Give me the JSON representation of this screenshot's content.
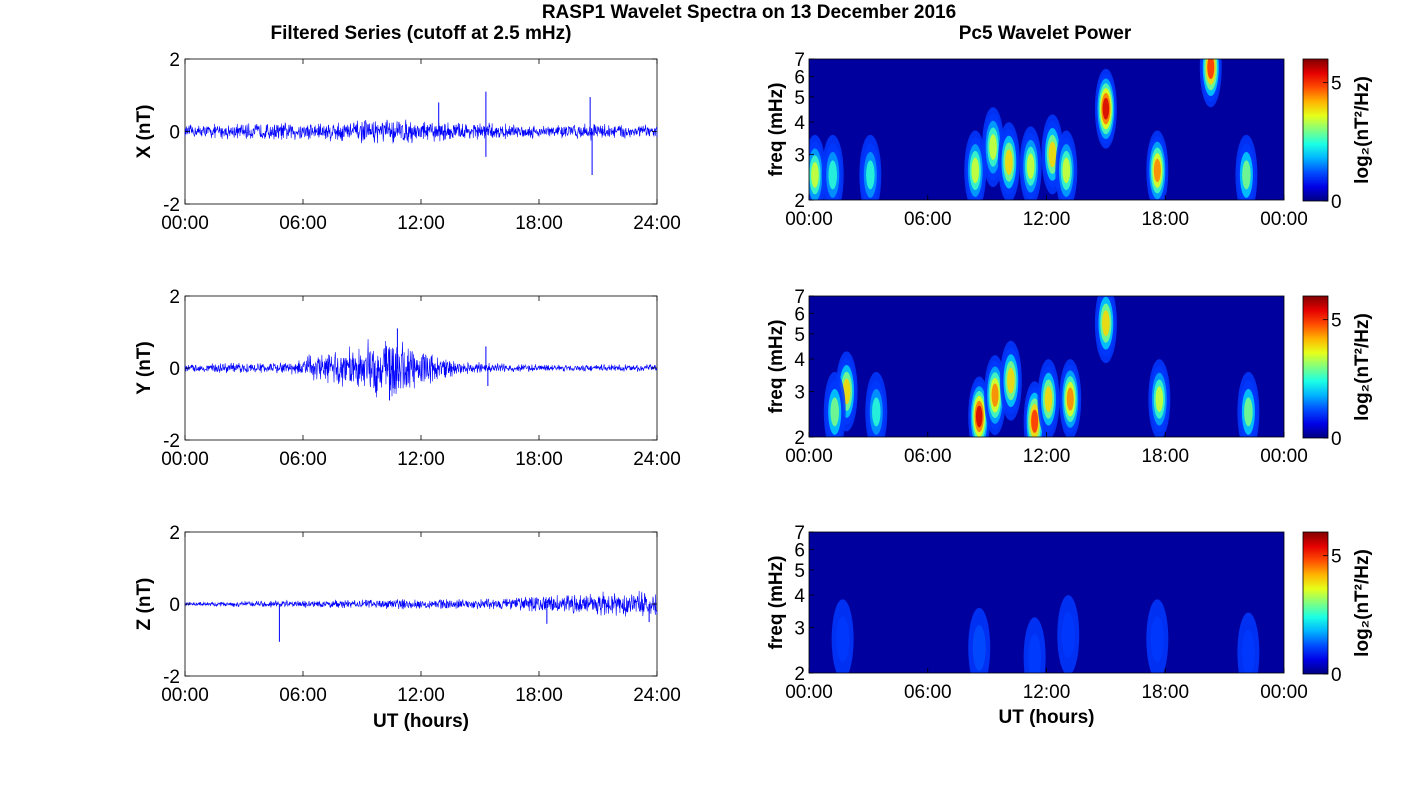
{
  "figure": {
    "title": "RASP1 Wavelet Spectra on 13 December 2016",
    "left_column_title": "Filtered Series (cutoff at 2.5 mHz)",
    "right_column_title": "Pc5 Wavelet Power"
  },
  "chart_data": [
    {
      "type": "line",
      "component": "X",
      "ylabel": "X (nT)",
      "xlabel": "",
      "xticks": [
        "00:00",
        "06:00",
        "12:00",
        "18:00",
        "24:00"
      ],
      "xlim": [
        0,
        24
      ],
      "ylim": [
        -2,
        2
      ],
      "yticks": [
        "2",
        "0",
        "-2"
      ],
      "x_units": "hours UT",
      "amplitude_envelope": {
        "x": [
          0,
          2,
          4,
          6,
          8,
          10,
          11,
          12,
          14,
          15.5,
          16,
          18,
          20,
          20.5,
          22,
          24
        ],
        "y": [
          0.15,
          0.18,
          0.2,
          0.22,
          0.25,
          0.28,
          0.3,
          0.25,
          0.22,
          0.2,
          0.18,
          0.15,
          0.18,
          0.2,
          0.18,
          0.15
        ]
      },
      "spikes": [
        {
          "x": 15.3,
          "y": 1.1
        },
        {
          "x": 15.3,
          "y": -0.7
        },
        {
          "x": 20.6,
          "y": 0.95
        },
        {
          "x": 20.7,
          "y": -1.2
        },
        {
          "x": 12.9,
          "y": 0.8
        }
      ]
    },
    {
      "type": "heatmap",
      "component": "X",
      "ylabel": "freq (mHz)",
      "xticks": [
        "00:00",
        "06:00",
        "12:00",
        "18:00",
        "00:00"
      ],
      "yticks": [
        "2",
        "3",
        "4",
        "5",
        "6",
        "7"
      ],
      "xlim": [
        0,
        24
      ],
      "ylim": [
        2,
        7
      ],
      "colorbar": {
        "label": "log₂(nT²/Hz)",
        "ticks": [
          "0",
          "5"
        ],
        "range": [
          0,
          6
        ]
      },
      "blobs": [
        {
          "t": 0.3,
          "f": 2.5,
          "power": 3.5
        },
        {
          "t": 1.2,
          "f": 2.5,
          "power": 2.5
        },
        {
          "t": 3.1,
          "f": 2.5,
          "power": 2.5
        },
        {
          "t": 8.4,
          "f": 2.6,
          "power": 3.5
        },
        {
          "t": 9.3,
          "f": 3.2,
          "power": 3.5
        },
        {
          "t": 10.1,
          "f": 2.8,
          "power": 4
        },
        {
          "t": 11.2,
          "f": 2.7,
          "power": 3.5
        },
        {
          "t": 12.3,
          "f": 3.0,
          "power": 4
        },
        {
          "t": 13.0,
          "f": 2.6,
          "power": 3.5
        },
        {
          "t": 15.0,
          "f": 4.5,
          "power": 5.5
        },
        {
          "t": 17.6,
          "f": 2.6,
          "power": 4.5
        },
        {
          "t": 20.3,
          "f": 6.5,
          "power": 5
        },
        {
          "t": 22.1,
          "f": 2.5,
          "power": 3
        }
      ]
    },
    {
      "type": "line",
      "component": "Y",
      "ylabel": "Y (nT)",
      "xlabel": "",
      "xticks": [
        "00:00",
        "06:00",
        "12:00",
        "18:00",
        "24:00"
      ],
      "xlim": [
        0,
        24
      ],
      "ylim": [
        -2,
        2
      ],
      "yticks": [
        "2",
        "0",
        "-2"
      ],
      "x_units": "hours UT",
      "amplitude_envelope": {
        "x": [
          0,
          2,
          4,
          5.5,
          6.5,
          8,
          9,
          10,
          10.5,
          11.5,
          12,
          13,
          14,
          15.5,
          18,
          20,
          22,
          24
        ],
        "y": [
          0.08,
          0.12,
          0.12,
          0.15,
          0.35,
          0.45,
          0.6,
          0.75,
          0.85,
          0.55,
          0.4,
          0.3,
          0.15,
          0.12,
          0.08,
          0.08,
          0.08,
          0.08
        ]
      },
      "spikes": [
        {
          "x": 10.8,
          "y": 1.1
        },
        {
          "x": 10.4,
          "y": -0.9
        },
        {
          "x": 15.3,
          "y": 0.6
        },
        {
          "x": 15.4,
          "y": -0.5
        }
      ]
    },
    {
      "type": "heatmap",
      "component": "Y",
      "ylabel": "freq (mHz)",
      "xticks": [
        "00:00",
        "06:00",
        "12:00",
        "18:00",
        "00:00"
      ],
      "yticks": [
        "2",
        "3",
        "4",
        "5",
        "6",
        "7"
      ],
      "xlim": [
        0,
        24
      ],
      "ylim": [
        2,
        7
      ],
      "colorbar": {
        "label": "log₂(nT²/Hz)",
        "ticks": [
          "0",
          "5"
        ],
        "range": [
          0,
          6
        ]
      },
      "blobs": [
        {
          "t": 1.9,
          "f": 3.0,
          "power": 4
        },
        {
          "t": 1.3,
          "f": 2.5,
          "power": 3
        },
        {
          "t": 3.4,
          "f": 2.5,
          "power": 2.5
        },
        {
          "t": 8.6,
          "f": 2.4,
          "power": 5.5
        },
        {
          "t": 9.4,
          "f": 2.9,
          "power": 4.5
        },
        {
          "t": 10.2,
          "f": 3.3,
          "power": 4
        },
        {
          "t": 11.4,
          "f": 2.3,
          "power": 5
        },
        {
          "t": 12.1,
          "f": 2.8,
          "power": 4
        },
        {
          "t": 13.2,
          "f": 2.8,
          "power": 4.5
        },
        {
          "t": 15.0,
          "f": 5.5,
          "power": 4
        },
        {
          "t": 17.7,
          "f": 2.8,
          "power": 3.5
        },
        {
          "t": 22.2,
          "f": 2.5,
          "power": 3
        }
      ]
    },
    {
      "type": "line",
      "component": "Z",
      "ylabel": "Z (nT)",
      "xlabel": "UT (hours)",
      "xticks": [
        "00:00",
        "06:00",
        "12:00",
        "18:00",
        "24:00"
      ],
      "xlim": [
        0,
        24
      ],
      "ylim": [
        -2,
        2
      ],
      "yticks": [
        "2",
        "0",
        "-2"
      ],
      "x_units": "hours UT",
      "amplitude_envelope": {
        "x": [
          0,
          2,
          4,
          6,
          8,
          10,
          12,
          14,
          16,
          17.5,
          19,
          20,
          21,
          22,
          23,
          24
        ],
        "y": [
          0.05,
          0.06,
          0.08,
          0.09,
          0.1,
          0.12,
          0.12,
          0.12,
          0.14,
          0.18,
          0.22,
          0.25,
          0.28,
          0.3,
          0.3,
          0.28
        ]
      },
      "spikes": [
        {
          "x": 4.8,
          "y": -1.05
        },
        {
          "x": 18.4,
          "y": -0.55
        },
        {
          "x": 23.6,
          "y": -0.5
        }
      ]
    },
    {
      "type": "heatmap",
      "component": "Z",
      "ylabel": "freq (mHz)",
      "xlabel": "UT (hours)",
      "xticks": [
        "00:00",
        "06:00",
        "12:00",
        "18:00",
        "00:00"
      ],
      "yticks": [
        "2",
        "3",
        "4",
        "5",
        "6",
        "7"
      ],
      "xlim": [
        0,
        24
      ],
      "ylim": [
        2,
        7
      ],
      "colorbar": {
        "label": "log₂(nT²/Hz)",
        "ticks": [
          "0",
          "5"
        ],
        "range": [
          0,
          6
        ]
      },
      "blobs": [
        {
          "t": 1.7,
          "f": 2.7,
          "power": 0.9
        },
        {
          "t": 8.6,
          "f": 2.5,
          "power": 1.2
        },
        {
          "t": 11.4,
          "f": 2.3,
          "power": 1.1
        },
        {
          "t": 13.1,
          "f": 2.8,
          "power": 0.9
        },
        {
          "t": 17.6,
          "f": 2.7,
          "power": 0.8
        },
        {
          "t": 22.2,
          "f": 2.4,
          "power": 0.6
        }
      ]
    }
  ]
}
